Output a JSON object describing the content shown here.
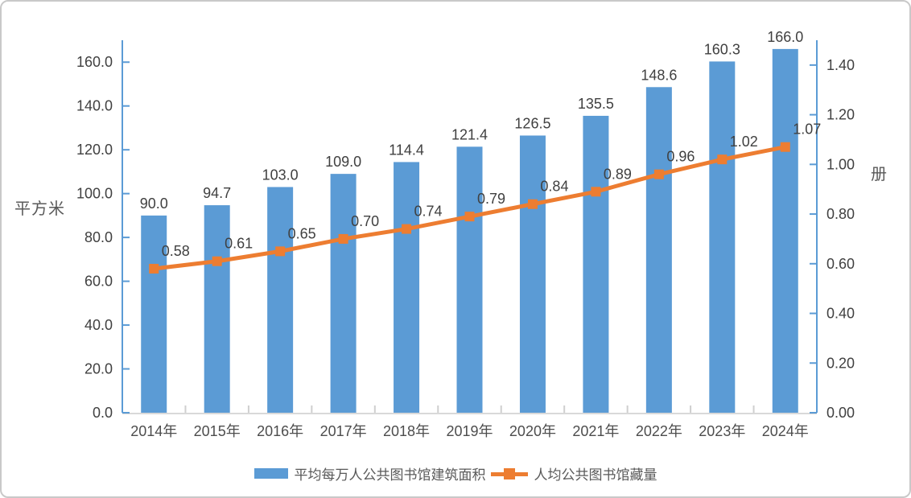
{
  "chart_data": {
    "type": "bar",
    "subtype": "bar-line-combo",
    "title": "",
    "categories": [
      "2014年",
      "2015年",
      "2016年",
      "2017年",
      "2018年",
      "2019年",
      "2020年",
      "2021年",
      "2022年",
      "2023年",
      "2024年"
    ],
    "series": [
      {
        "name": "平均每万人公共图书馆建筑面积",
        "chart": "bar",
        "axis": "left",
        "color": "#5B9BD5",
        "values": [
          90.0,
          94.7,
          103.0,
          109.0,
          114.4,
          121.4,
          126.5,
          135.5,
          148.6,
          160.3,
          166.0
        ],
        "data_labels": [
          "90.0",
          "94.7",
          "103.0",
          "109.0",
          "114.4",
          "121.4",
          "126.5",
          "135.5",
          "148.6",
          "160.3",
          "166.0"
        ]
      },
      {
        "name": "人均公共图书馆藏量",
        "chart": "line",
        "axis": "right",
        "color": "#ED7D31",
        "marker": "square",
        "values": [
          0.58,
          0.61,
          0.65,
          0.7,
          0.74,
          0.79,
          0.84,
          0.89,
          0.96,
          1.02,
          1.07
        ],
        "data_labels": [
          "0.58",
          "0.61",
          "0.65",
          "0.70",
          "0.74",
          "0.79",
          "0.84",
          "0.89",
          "0.96",
          "1.02",
          "1.07"
        ]
      }
    ],
    "left_axis": {
      "title": "平方米",
      "tick_values": [
        0,
        20,
        40,
        60,
        80,
        100,
        120,
        140,
        160
      ],
      "tick_labels": [
        "0.0",
        "20.0",
        "40.0",
        "60.0",
        "80.0",
        "100.0",
        "120.0",
        "140.0",
        "160.0"
      ],
      "range": [
        0,
        170
      ],
      "line_color": "#5B9BD5"
    },
    "right_axis": {
      "title": "册",
      "tick_values": [
        0,
        0.2,
        0.4,
        0.6,
        0.8,
        1.0,
        1.2,
        1.4
      ],
      "tick_labels": [
        "0.00",
        "0.20",
        "0.40",
        "0.60",
        "0.80",
        "1.00",
        "1.20",
        "1.40"
      ],
      "range": [
        0,
        1.5
      ],
      "line_color": "#5B9BD5"
    },
    "x_axis": {
      "line_color": "#d9d9d9",
      "tick_color": "#cfcfcf"
    },
    "grid": false,
    "legend_position": "bottom",
    "colors": {
      "tick_text": "#404040",
      "data_label_text": "#404040",
      "x_label_text": "#4d4d4d",
      "axis_title_text": "#595959"
    }
  }
}
